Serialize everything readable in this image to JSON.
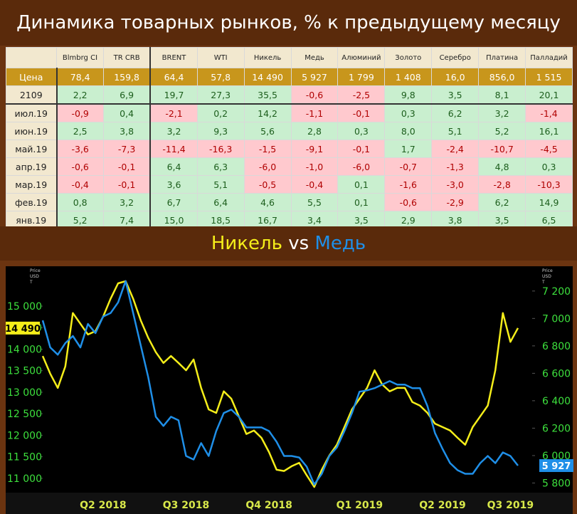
{
  "header": {
    "title": "Динамика товарных рынков, % к предыдущему месяцу"
  },
  "table": {
    "header": [
      "Blmbrg CI",
      "TR CRB",
      "BRENT",
      "WTI",
      "Никель",
      "Медь",
      "Алюминий",
      "Золото",
      "Серебро",
      "Платина",
      "Палладий"
    ],
    "rows": [
      {
        "label": "Цена",
        "cells": [
          "78,4",
          "159,8",
          "64,4",
          "57,8",
          "14 490",
          "5 927",
          "1 799",
          "1 408",
          "16,0",
          "856,0",
          "1 515"
        ]
      },
      {
        "label": "2109",
        "cells": [
          "2,2",
          "6,9",
          "19,7",
          "27,3",
          "35,5",
          "-0,6",
          "-2,5",
          "9,8",
          "3,5",
          "8,1",
          "20,1"
        ]
      },
      {
        "label": "июл.19",
        "cells": [
          "-0,9",
          "0,4",
          "-2,1",
          "0,2",
          "14,2",
          "-1,1",
          "-0,1",
          "0,3",
          "6,2",
          "3,2",
          "-1,4"
        ]
      },
      {
        "label": "июн.19",
        "cells": [
          "2,5",
          "3,8",
          "3,2",
          "9,3",
          "5,6",
          "2,8",
          "0,3",
          "8,0",
          "5,1",
          "5,2",
          "16,1"
        ]
      },
      {
        "label": "май.19",
        "cells": [
          "-3,6",
          "-7,3",
          "-11,4",
          "-16,3",
          "-1,5",
          "-9,1",
          "-0,1",
          "1,7",
          "-2,4",
          "-10,7",
          "-4,5"
        ]
      },
      {
        "label": "апр.19",
        "cells": [
          "-0,6",
          "-0,1",
          "6,4",
          "6,3",
          "-6,0",
          "-1,0",
          "-6,0",
          "-0,7",
          "-1,3",
          "4,8",
          "0,3"
        ]
      },
      {
        "label": "мар.19",
        "cells": [
          "-0,4",
          "-0,1",
          "3,6",
          "5,1",
          "-0,5",
          "-0,4",
          "0,1",
          "-1,6",
          "-3,0",
          "-2,8",
          "-10,3"
        ]
      },
      {
        "label": "фев.19",
        "cells": [
          "0,8",
          "3,2",
          "6,7",
          "6,4",
          "4,6",
          "5,5",
          "0,1",
          "-0,6",
          "-2,9",
          "6,2",
          "14,9"
        ]
      },
      {
        "label": "янв.19",
        "cells": [
          "5,2",
          "7,4",
          "15,0",
          "18,5",
          "16,7",
          "3,4",
          "3,5",
          "2,9",
          "3,8",
          "3,5",
          "6,5"
        ]
      }
    ]
  },
  "chart_data": {
    "type": "line",
    "title_joiner": "vs",
    "y_label": [
      "Price",
      "USD",
      "T"
    ],
    "y2_label": [
      "Price",
      "USD",
      "T"
    ],
    "categories": [
      null,
      null,
      null,
      null,
      null,
      null,
      null,
      null,
      "Q2 2018",
      null,
      null,
      null,
      null,
      null,
      null,
      null,
      null,
      null,
      null,
      "Q3 2018",
      null,
      null,
      null,
      null,
      null,
      null,
      null,
      null,
      null,
      null,
      "Q4 2018",
      null,
      null,
      null,
      null,
      null,
      null,
      null,
      null,
      null,
      null,
      null,
      "Q1 2019",
      null,
      null,
      null,
      null,
      null,
      null,
      null,
      null,
      null,
      null,
      "Q2 2019",
      null,
      null,
      null,
      null,
      null,
      null,
      null,
      null,
      "Q3 2019",
      null
    ],
    "series": [
      {
        "name": "Никель",
        "color": "#f5ee1a",
        "axis": "y",
        "values": [
          13840,
          13430,
          13100,
          13600,
          14840,
          14590,
          14340,
          14420,
          14750,
          15170,
          15530,
          15580,
          15170,
          14670,
          14260,
          13930,
          13680,
          13840,
          13680,
          13510,
          13760,
          13100,
          12600,
          12520,
          13020,
          12850,
          12440,
          12030,
          12110,
          11940,
          11610,
          11200,
          11170,
          11280,
          11360,
          11070,
          10800,
          11200,
          11530,
          11780,
          12190,
          12600,
          12850,
          13100,
          13510,
          13180,
          13020,
          13100,
          13100,
          12770,
          12690,
          12520,
          12270,
          12190,
          12110,
          11940,
          11780,
          12190,
          12440,
          12690,
          13510,
          14840,
          14170,
          14490
        ]
      },
      {
        "name": "Медь",
        "color": "#1f8fe8",
        "axis": "y2",
        "values": [
          6986,
          6789,
          6736,
          6820,
          6872,
          6789,
          6960,
          6893,
          7013,
          7039,
          7117,
          7273,
          7039,
          6804,
          6570,
          6283,
          6216,
          6283,
          6257,
          5997,
          5971,
          6091,
          5997,
          6179,
          6310,
          6335,
          6283,
          6205,
          6205,
          6205,
          6179,
          6101,
          5997,
          5997,
          5986,
          5919,
          5789,
          5867,
          5997,
          6059,
          6179,
          6310,
          6466,
          6476,
          6492,
          6518,
          6544,
          6518,
          6518,
          6492,
          6492,
          6361,
          6164,
          6049,
          5945,
          5893,
          5867,
          5867,
          5945,
          5997,
          5945,
          6023,
          5997,
          5927
        ]
      }
    ],
    "ylim": [
      10700,
      15860
    ],
    "yticks": [
      {
        "value": 11000,
        "label": "11 000"
      },
      {
        "value": 11500,
        "label": "11 500"
      },
      {
        "value": 12000,
        "label": "12 000"
      },
      {
        "value": 12500,
        "label": "12 500"
      },
      {
        "value": 13000,
        "label": "13 000"
      },
      {
        "value": 13500,
        "label": "13 500"
      },
      {
        "value": 14000,
        "label": "14 000"
      },
      {
        "value": 14500,
        "label": "14 500"
      },
      {
        "value": 15000,
        "label": "15 000"
      }
    ],
    "y2lim": [
      5740,
      7360
    ],
    "y2ticks": [
      {
        "value": 5800,
        "label": "5 800"
      },
      {
        "value": 6000,
        "label": "6 000"
      },
      {
        "value": 6200,
        "label": "6 200"
      },
      {
        "value": 6400,
        "label": "6 400"
      },
      {
        "value": 6600,
        "label": "6 600"
      },
      {
        "value": 6800,
        "label": "6 800"
      },
      {
        "value": 7000,
        "label": "7 000"
      },
      {
        "value": 7200,
        "label": "7 200"
      }
    ],
    "annotations": [
      {
        "text": "14 490",
        "value": 14490,
        "axis": "y"
      },
      {
        "text": "5 927",
        "value": 5927,
        "axis": "y2"
      }
    ]
  }
}
